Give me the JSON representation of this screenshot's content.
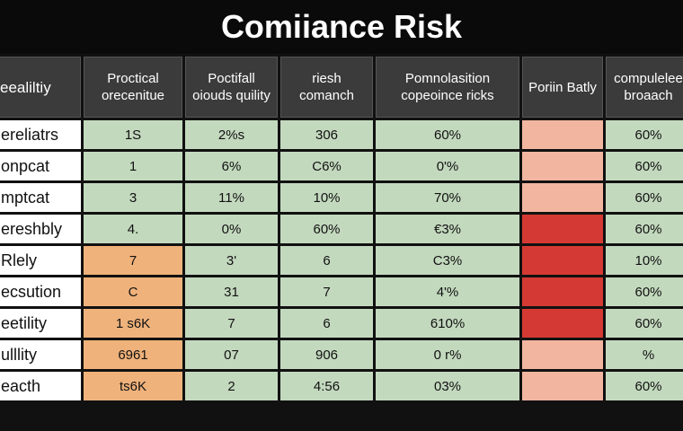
{
  "title": "Comiiance Risk",
  "colors": {
    "background": "#111111",
    "header": "#3b3b3b",
    "green": "#c3d9be",
    "orange": "#efb27b",
    "salmon": "#f1b5a0",
    "red": "#d43a33"
  },
  "headers": [
    "eealiltiy",
    "Proctical orecenitue",
    "Poctifall oiouds quility",
    "riesh comanch",
    "Pomnolasition copeoince ricks",
    "Poriin Batly",
    "compulelee broaach"
  ],
  "rows": [
    {
      "label": "ereliatrs",
      "cells": [
        "1S",
        "2%s",
        "306",
        "60%",
        "",
        "60%"
      ],
      "colors": [
        "green",
        "green",
        "green",
        "green",
        "salmon",
        "green"
      ]
    },
    {
      "label": "onpcat",
      "cells": [
        "1",
        "6%",
        "C6%",
        "0'%",
        "",
        "60%"
      ],
      "colors": [
        "green",
        "green",
        "green",
        "green",
        "salmon",
        "green"
      ]
    },
    {
      "label": "mptcat",
      "cells": [
        "3",
        "11%",
        "10%",
        "70%",
        "",
        "60%"
      ],
      "colors": [
        "green",
        "green",
        "green",
        "green",
        "salmon",
        "green"
      ]
    },
    {
      "label": "ereshbly",
      "cells": [
        "4.",
        "0%",
        "60%",
        "€3%",
        "",
        "60%"
      ],
      "colors": [
        "green",
        "green",
        "green",
        "green",
        "red",
        "green"
      ]
    },
    {
      "label": "Rlely",
      "cells": [
        "7",
        "3'",
        "6",
        "C3%",
        "",
        "10%"
      ],
      "colors": [
        "orange",
        "green",
        "green",
        "green",
        "red",
        "green"
      ]
    },
    {
      "label": "ecsution",
      "cells": [
        "C",
        "31",
        "7",
        "4'%",
        "",
        "60%"
      ],
      "colors": [
        "orange",
        "green",
        "green",
        "green",
        "red",
        "green"
      ]
    },
    {
      "label": "eetility",
      "cells": [
        "1 s6K",
        "7",
        "6",
        "610%",
        "",
        "60%"
      ],
      "colors": [
        "orange",
        "green",
        "green",
        "green",
        "red",
        "green"
      ]
    },
    {
      "label": "ulllity",
      "cells": [
        "6961",
        "07",
        "906",
        "0 r%",
        "",
        "%"
      ],
      "colors": [
        "orange",
        "green",
        "green",
        "green",
        "salmon",
        "green"
      ]
    },
    {
      "label": "eacth",
      "cells": [
        "ts6K",
        "2",
        "4:56",
        "03%",
        "",
        "60%"
      ],
      "colors": [
        "orange",
        "green",
        "green",
        "green",
        "salmon",
        "green"
      ]
    }
  ]
}
